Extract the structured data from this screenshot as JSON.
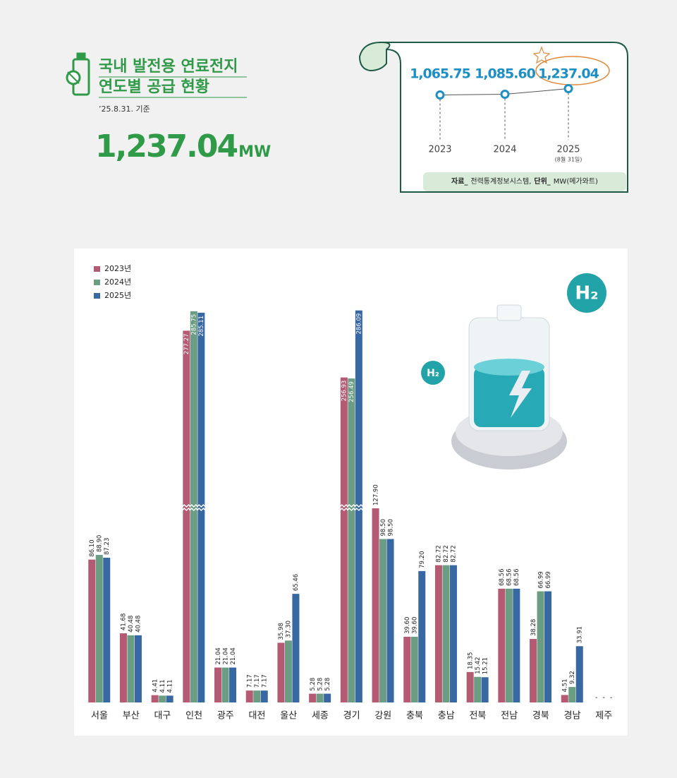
{
  "header": {
    "title": [
      "국내 발전용 연료전지",
      "연도별 공급 현황"
    ],
    "date": "’25.8.31. 기준",
    "total": "1,237.04",
    "total_unit": "MW"
  },
  "badge": "H₂",
  "source": {
    "label": "자료_",
    "text": "전력통계정보시스템,",
    "unit_label": "단위_",
    "unit": "MW(메가와트)"
  },
  "chart_data": [
    {
      "type": "line",
      "categories": [
        "2023",
        "2024",
        "2025"
      ],
      "values": [
        1065.75,
        1085.6,
        1237.04
      ],
      "value_labels": [
        "1,065.75",
        "1,085.60",
        "1,237.04"
      ],
      "annotations": [
        "(8월 31일)"
      ],
      "ylim": [
        1000,
        3000
      ],
      "color": "#1d8fc4"
    },
    {
      "type": "bar",
      "categories": [
        "서울",
        "부산",
        "대구",
        "인천",
        "광주",
        "대전",
        "울산",
        "세종",
        "경기",
        "강원",
        "충북",
        "충남",
        "전북",
        "전남",
        "경북",
        "경남",
        "제주"
      ],
      "ylim": [
        0,
        290
      ],
      "ybreak": [
        117,
        200
      ],
      "legend": "top-left",
      "series": [
        {
          "name": "2023년",
          "color": "#b45a73",
          "values": [
            86.1,
            41.68,
            4.41,
            277.27,
            21.04,
            7.17,
            35.98,
            5.28,
            256.93,
            127.9,
            39.6,
            82.72,
            18.35,
            68.56,
            38.28,
            4.51,
            null
          ],
          "value_labels": [
            "86.10",
            "41.68",
            "4.41",
            "277.27",
            "21.04",
            "7.17",
            "35.98",
            "5.28",
            "256.93",
            "127.90",
            "39.60",
            "82.72",
            "18.35",
            "68.56",
            "38.28",
            "4.51",
            "-"
          ]
        },
        {
          "name": "2024년",
          "color": "#6b9d84",
          "values": [
            88.9,
            40.48,
            4.11,
            285.75,
            21.04,
            7.17,
            37.3,
            5.28,
            256.49,
            98.5,
            39.6,
            82.72,
            15.42,
            68.56,
            66.99,
            9.32,
            null
          ],
          "value_labels": [
            "88.90",
            "40.48",
            "4.11",
            "285.75",
            "21.04",
            "7.17",
            "37.30",
            "5.28",
            "256.49",
            "98.50",
            "39.60",
            "82.72",
            "15.42",
            "68.56",
            "66.99",
            "9.32",
            "-"
          ]
        },
        {
          "name": "2025년",
          "color": "#3868a2",
          "values": [
            87.23,
            40.48,
            4.11,
            285.11,
            21.04,
            7.17,
            65.46,
            5.28,
            286.09,
            98.5,
            79.2,
            82.72,
            15.21,
            68.56,
            66.99,
            33.91,
            null
          ],
          "value_labels": [
            "87.23",
            "40.48",
            "4.11",
            "285.11",
            "21.04",
            "7.17",
            "65.46",
            "5.28",
            "286.09",
            "98.50",
            "79.20",
            "82.72",
            "15.21",
            "68.56",
            "66.99",
            "33.91",
            "-"
          ]
        }
      ]
    }
  ]
}
